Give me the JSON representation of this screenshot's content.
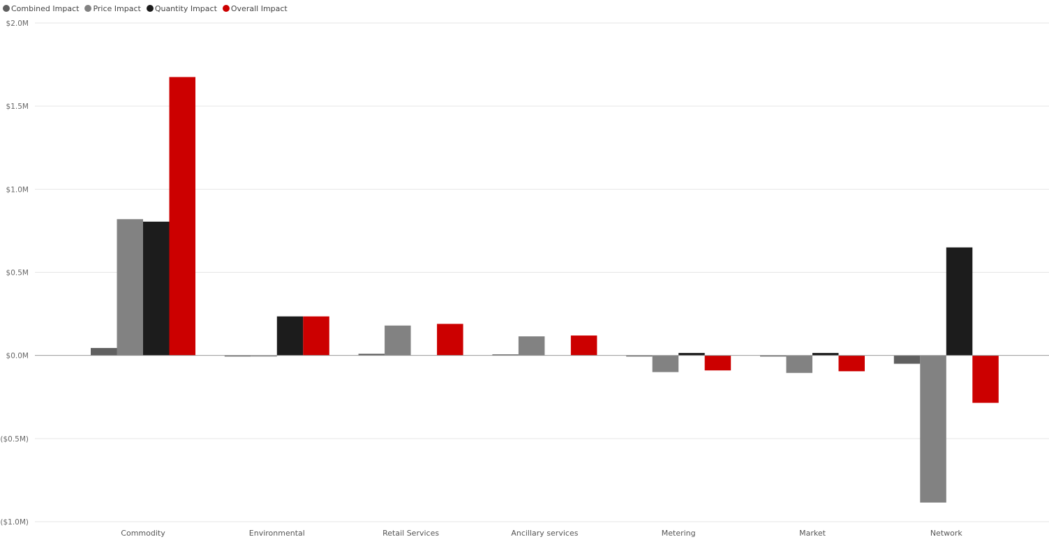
{
  "legend": [
    {
      "label": "Combined Impact",
      "color": "#606060"
    },
    {
      "label": "Price Impact",
      "color": "#828282"
    },
    {
      "label": "Quantity Impact",
      "color": "#1c1c1c"
    },
    {
      "label": "Overall Impact",
      "color": "#cc0000"
    }
  ],
  "chart_data": {
    "type": "bar",
    "title": "",
    "xlabel": "",
    "ylabel": "",
    "ylim": [
      -1.0,
      2.0
    ],
    "y_unit": "$M",
    "y_ticks": [
      {
        "value": 2.0,
        "label": "$2.0M"
      },
      {
        "value": 1.5,
        "label": "$1.5M"
      },
      {
        "value": 1.0,
        "label": "$1.0M"
      },
      {
        "value": 0.5,
        "label": "$0.5M"
      },
      {
        "value": 0.0,
        "label": "$0.0M"
      },
      {
        "value": -0.5,
        "label": "($0.5M)"
      },
      {
        "value": -1.0,
        "label": "($1.0M)"
      }
    ],
    "legend_position": "top-left",
    "grid": true,
    "categories": [
      "Commodity",
      "Environmental",
      "Retail Services",
      "Ancillary services",
      "Metering",
      "Market",
      "Network"
    ],
    "series": [
      {
        "name": "Combined Impact",
        "color": "#606060",
        "values": [
          0.045,
          -0.005,
          0.01,
          0.005,
          -0.005,
          -0.005,
          -0.05
        ]
      },
      {
        "name": "Price Impact",
        "color": "#828282",
        "values": [
          0.82,
          -0.003,
          0.18,
          0.115,
          -0.1,
          -0.105,
          -0.885
        ]
      },
      {
        "name": "Quantity Impact",
        "color": "#1c1c1c",
        "values": [
          0.805,
          0.235,
          0.0,
          0.0,
          0.015,
          0.015,
          0.65
        ]
      },
      {
        "name": "Overall Impact",
        "color": "#cc0000",
        "values": [
          1.675,
          0.235,
          0.19,
          0.12,
          -0.09,
          -0.095,
          -0.285
        ]
      }
    ]
  }
}
